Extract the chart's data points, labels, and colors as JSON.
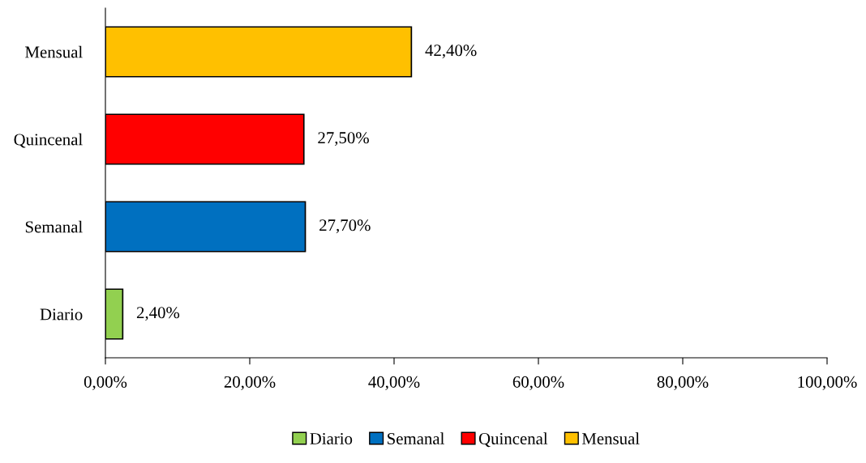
{
  "chart_data": {
    "type": "bar",
    "orientation": "horizontal",
    "categories": [
      "Mensual",
      "Quincenal",
      "Semanal",
      "Diario"
    ],
    "series": [
      {
        "name": "Diario",
        "color": "#92d050",
        "values": [
          null,
          null,
          null,
          2.4
        ],
        "value_labels": [
          null,
          null,
          null,
          "2,40%"
        ]
      },
      {
        "name": "Semanal",
        "color": "#0070c0",
        "values": [
          null,
          null,
          27.7,
          null
        ],
        "value_labels": [
          null,
          null,
          "27,70%",
          null
        ]
      },
      {
        "name": "Quincenal",
        "color": "#ff0000",
        "values": [
          null,
          27.5,
          null,
          null
        ],
        "value_labels": [
          null,
          "27,50%",
          null,
          null
        ]
      },
      {
        "name": "Mensual",
        "color": "#ffc000",
        "values": [
          42.4,
          null,
          null,
          null
        ],
        "value_labels": [
          "42,40%",
          null,
          null,
          null
        ]
      }
    ],
    "xlim": [
      0,
      100
    ],
    "xticks": [
      {
        "value": 0,
        "label": "0,00%"
      },
      {
        "value": 20,
        "label": "20,00%"
      },
      {
        "value": 40,
        "label": "40,00%"
      },
      {
        "value": 60,
        "label": "60,00%"
      },
      {
        "value": 80,
        "label": "80,00%"
      },
      {
        "value": 100,
        "label": "100,00%"
      }
    ],
    "grid": false,
    "legend": "bottom"
  }
}
